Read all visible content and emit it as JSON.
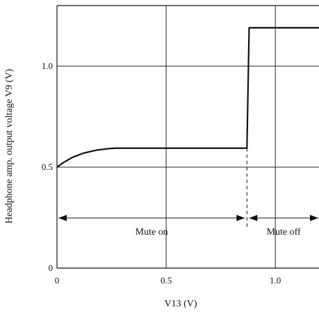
{
  "chart_data": {
    "type": "line",
    "title": "",
    "xlabel": "V13  (V)",
    "ylabel": "Headphone amp. output voltage  V9  (V)",
    "xlim": [
      0,
      1.2
    ],
    "ylim": [
      0,
      1.3
    ],
    "grid": true,
    "x_ticks": [
      {
        "value": 0,
        "label": "0"
      },
      {
        "value": 0.5,
        "label": "0.5"
      },
      {
        "value": 1.0,
        "label": "1.0"
      }
    ],
    "y_ticks": [
      {
        "value": 0,
        "label": "0"
      },
      {
        "value": 0.5,
        "label": "0.5"
      },
      {
        "value": 1.0,
        "label": "1.0"
      }
    ],
    "series": [
      {
        "x": [
          0,
          0.03,
          0.07,
          0.12,
          0.18,
          0.24,
          0.27,
          0.5,
          0.87,
          0.88,
          1.2
        ],
        "y": [
          0.5,
          0.523,
          0.548,
          0.569,
          0.584,
          0.592,
          0.594,
          0.594,
          0.594,
          1.19,
          1.19
        ]
      }
    ],
    "annotations": [
      {
        "text": "Mute on",
        "x_from": 0,
        "x_to": 0.87
      },
      {
        "text": "Mute off",
        "x_from": 0.87,
        "x_to": 1.2
      }
    ],
    "reference_lines": [
      {
        "x": 0.87,
        "y_from": 0.19,
        "y_to": 0.594,
        "style": "dashed"
      }
    ]
  }
}
